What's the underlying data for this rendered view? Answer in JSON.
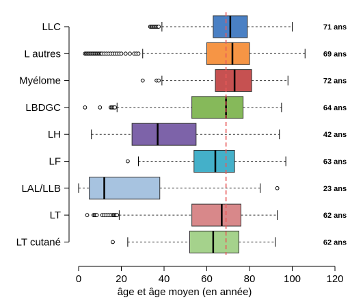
{
  "chart_data": {
    "type": "box",
    "xlabel": "âge et âge moyen (en année)",
    "xlim": [
      0,
      120
    ],
    "xticks": [
      "0",
      "20",
      "40",
      "60",
      "80",
      "100",
      "120"
    ],
    "reference_line": {
      "x": 69,
      "color": "#e85a5a",
      "style": "dashed"
    },
    "categories": [
      {
        "name": "LLC",
        "color": "#4a80c4",
        "whisker_low": 39,
        "q1": 63,
        "median": 71,
        "q3": 79,
        "whisker_high": 100,
        "outliers": [
          33.5,
          34,
          34.5,
          35,
          35.5,
          36,
          36.5,
          37,
          37.5
        ],
        "median_label": "71 ans"
      },
      {
        "name": "L autres",
        "color": "#f69545",
        "whisker_low": 30,
        "q1": 60,
        "median": 72,
        "q3": 80,
        "whisker_high": 106,
        "outliers": [
          3,
          3.5,
          4,
          4.5,
          5,
          5.5,
          6,
          6.5,
          7,
          7.5,
          8,
          8.5,
          9,
          9.5,
          10,
          10.5,
          11,
          12,
          13,
          14,
          15,
          16,
          17,
          18,
          19,
          20,
          22,
          24,
          26,
          27,
          28
        ],
        "median_label": "69 ans"
      },
      {
        "name": "Myélome",
        "color": "#c65151",
        "whisker_low": 39,
        "q1": 64,
        "median": 73,
        "q3": 81,
        "whisker_high": 98,
        "outliers": [
          30,
          36.5,
          37.5
        ],
        "median_label": "72 ans"
      },
      {
        "name": "LBDGC",
        "color": "#86b95a",
        "whisker_low": 18,
        "q1": 53,
        "median": 69,
        "q3": 77,
        "whisker_high": 95,
        "outliers": [
          3,
          10,
          15,
          15.5,
          16,
          16.5,
          17
        ],
        "median_label": "64 ans"
      },
      {
        "name": "LH",
        "color": "#7d63a9",
        "whisker_low": 6,
        "q1": 25,
        "median": 37,
        "q3": 55,
        "whisker_high": 94,
        "outliers": [],
        "median_label": "42 ans"
      },
      {
        "name": "LF",
        "color": "#44b0c9",
        "whisker_low": 28,
        "q1": 54,
        "median": 64,
        "q3": 73,
        "whisker_high": 97,
        "outliers": [
          23
        ],
        "median_label": "63 ans"
      },
      {
        "name": "LAL/LLB",
        "color": "#a7c3e0",
        "whisker_low": 0,
        "q1": 5,
        "median": 12,
        "q3": 38,
        "whisker_high": 85,
        "outliers": [
          93
        ],
        "median_label": "23 ans"
      },
      {
        "name": "LT",
        "color": "#d8888a",
        "whisker_low": 19,
        "q1": 53,
        "median": 67,
        "q3": 76,
        "whisker_high": 93,
        "outliers": [
          4,
          7,
          7.5,
          8,
          8.5,
          11,
          12,
          13,
          14,
          15,
          16,
          16.5,
          17,
          17.5,
          18
        ],
        "median_label": "62 ans"
      },
      {
        "name": "LT cutané",
        "color": "#a5d28c",
        "whisker_low": 23,
        "q1": 52,
        "median": 63,
        "q3": 75,
        "whisker_high": 92,
        "outliers": [
          16
        ],
        "median_label": "62 ans"
      }
    ]
  }
}
